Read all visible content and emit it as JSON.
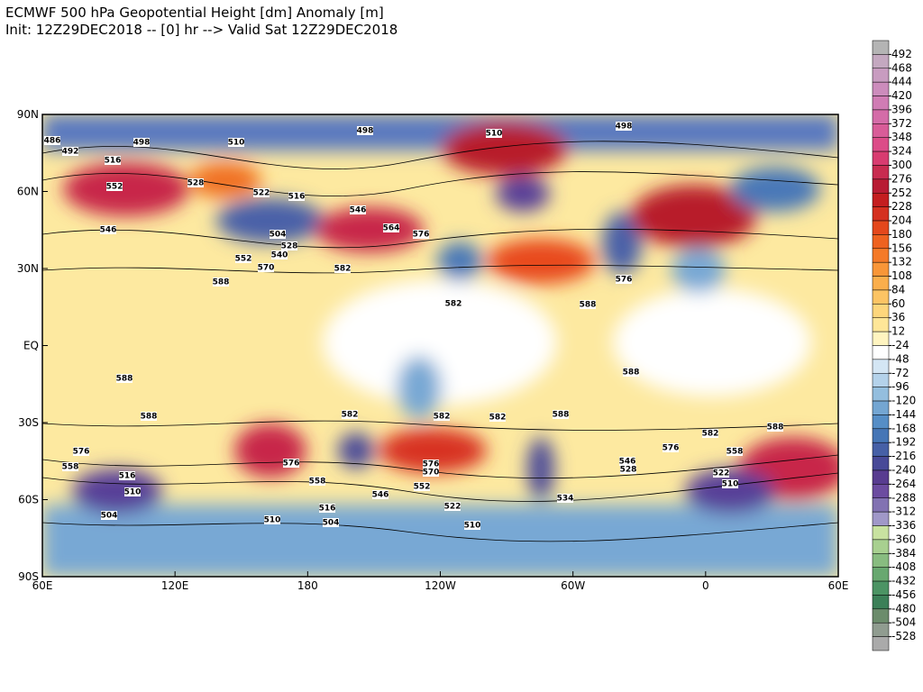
{
  "header": {
    "title": "ECMWF 500 hPa Geopotential Height [dm] Anomaly [m]",
    "subtitle": "Init: 12Z29DEC2018 -- [0] hr --> Valid Sat 12Z29DEC2018"
  },
  "map": {
    "xlim": [
      60,
      420
    ],
    "ylim": [
      -90,
      90
    ],
    "xticks": [
      {
        "value": 60,
        "label": "60E"
      },
      {
        "value": 120,
        "label": "120E"
      },
      {
        "value": 180,
        "label": "180"
      },
      {
        "value": 240,
        "label": "120W"
      },
      {
        "value": 300,
        "label": "60W"
      },
      {
        "value": 360,
        "label": "0"
      },
      {
        "value": 420,
        "label": "60E"
      }
    ],
    "yticks": [
      {
        "value": 90,
        "label": "90N"
      },
      {
        "value": 60,
        "label": "60N"
      },
      {
        "value": 30,
        "label": "30N"
      },
      {
        "value": 0,
        "label": "EQ"
      },
      {
        "value": -30,
        "label": "30S"
      },
      {
        "value": -60,
        "label": "60S"
      },
      {
        "value": -90,
        "label": "90S"
      }
    ],
    "contour_labels": [
      "498",
      "498",
      "510",
      "510",
      "486",
      "492",
      "498",
      "516",
      "552",
      "528",
      "522",
      "516",
      "546",
      "564",
      "576",
      "546",
      "504",
      "528",
      "552",
      "540",
      "570",
      "582",
      "588",
      "576",
      "582",
      "588",
      "588",
      "588",
      "588",
      "582",
      "582",
      "582",
      "588",
      "582",
      "588",
      "576",
      "558",
      "516",
      "510",
      "504",
      "576",
      "558",
      "576",
      "570",
      "552",
      "546",
      "522",
      "516",
      "510",
      "504",
      "510",
      "534",
      "546",
      "528",
      "576",
      "558",
      "522",
      "510"
    ]
  },
  "colorbar": {
    "ticks": [
      492,
      468,
      444,
      420,
      396,
      372,
      348,
      324,
      300,
      276,
      252,
      228,
      204,
      180,
      156,
      132,
      108,
      84,
      60,
      36,
      12,
      -24,
      -48,
      -72,
      -96,
      -120,
      -144,
      -168,
      -192,
      -216,
      -240,
      -264,
      -288,
      -312,
      -336,
      -360,
      -384,
      -408,
      -432,
      -456,
      -480,
      -504,
      -528
    ],
    "colors": [
      "#b4b4b4",
      "#c4a8c0",
      "#c89cc0",
      "#cc8cbc",
      "#d07cb4",
      "#d46ca8",
      "#d85c98",
      "#dc4c88",
      "#d83c70",
      "#c82c50",
      "#b81c34",
      "#c41e20",
      "#d43020",
      "#e4481c",
      "#ee6220",
      "#f47a28",
      "#f89638",
      "#faae4c",
      "#fcc464",
      "#fdd67c",
      "#fee698",
      "#fff4c0",
      "#ffffff",
      "#d4e6f4",
      "#b4d2ea",
      "#94bede",
      "#74a6d2",
      "#568ec6",
      "#4676b6",
      "#4660a6",
      "#484a98",
      "#583c90",
      "#6c4ca0",
      "#8272b2",
      "#a098c8",
      "#c8e2a0",
      "#a8d090",
      "#88bc80",
      "#68a870",
      "#4c9464",
      "#3c8058",
      "#6c8c6c",
      "#909c90",
      "#aaaaaa"
    ]
  }
}
